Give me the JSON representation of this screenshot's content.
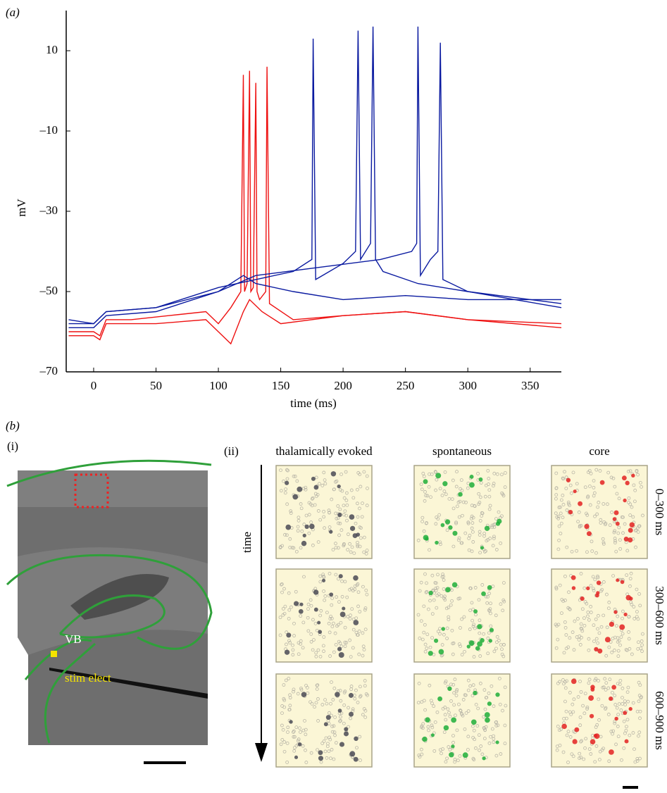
{
  "chart_data": {
    "type": "line",
    "label": "(a)",
    "xlabel": "time (ms)",
    "ylabel": "mV",
    "xlim": [
      -22,
      375
    ],
    "ylim": [
      -70,
      20
    ],
    "xticks": [
      0,
      50,
      100,
      150,
      200,
      250,
      300,
      350
    ],
    "yticks": [
      {
        "value": -70,
        "label": "–70"
      },
      {
        "value": -50,
        "label": "–50"
      },
      {
        "value": -30,
        "label": "–30"
      },
      {
        "value": -10,
        "label": "–10"
      },
      10
    ],
    "series": [
      {
        "color": "#ee1111",
        "x": [
          -20,
          0,
          5,
          10,
          50,
          90,
          100,
          110,
          120,
          125,
          135,
          150,
          200,
          250,
          300,
          375
        ],
        "values": [
          -61,
          -61,
          -62,
          -58,
          -58,
          -57,
          -60,
          -63,
          -55,
          -52,
          -55,
          -58,
          -56,
          -55,
          -57,
          -59
        ]
      },
      {
        "color": "#ee1111",
        "x": [
          -20,
          0,
          5,
          10,
          30,
          60,
          90,
          100,
          110,
          118,
          120,
          121,
          123,
          125,
          126,
          128,
          130,
          131,
          133,
          138,
          139,
          141,
          160,
          200,
          250,
          300,
          375
        ],
        "values": [
          -60,
          -60,
          -61,
          -57,
          -57,
          -56,
          -55,
          -58,
          -54,
          -50,
          4,
          -50,
          -48,
          5,
          -50,
          -49,
          2,
          -50,
          -52,
          -50,
          6,
          -53,
          -57,
          -56,
          -55,
          -57,
          -58
        ]
      },
      {
        "color": "#0a1aa0",
        "x": [
          -20,
          0,
          10,
          50,
          100,
          120,
          130,
          160,
          200,
          250,
          300,
          375
        ],
        "values": [
          -57,
          -58,
          -55,
          -54,
          -50,
          -46,
          -48,
          -50,
          -52,
          -51,
          -52,
          -52
        ]
      },
      {
        "color": "#0a1aa0",
        "x": [
          -20,
          0,
          10,
          50,
          100,
          130,
          160,
          175,
          176,
          178,
          200,
          210,
          212,
          214,
          222,
          224,
          226,
          232,
          260,
          300,
          375
        ],
        "values": [
          -58,
          -58,
          -55,
          -54,
          -49,
          -47,
          -45,
          -42,
          13,
          -47,
          -43,
          -40,
          15,
          -42,
          -38,
          16,
          -42,
          -45,
          -48,
          -50,
          -53
        ]
      },
      {
        "color": "#0a1aa0",
        "x": [
          -20,
          0,
          10,
          50,
          100,
          130,
          180,
          230,
          255,
          259,
          260,
          262,
          270,
          276,
          278,
          280,
          300,
          375
        ],
        "values": [
          -59,
          -59,
          -56,
          -55,
          -50,
          -46,
          -44,
          -42,
          -40,
          -38,
          16,
          -46,
          -42,
          -40,
          12,
          -47,
          -50,
          -54
        ]
      }
    ]
  },
  "panel_b": {
    "label": "(b)",
    "sub_i": "(i)",
    "sub_ii": "(ii)",
    "columns": [
      "thalamically evoked",
      "spontaneous",
      "core"
    ],
    "rows": [
      "0–300 ms",
      "300–600 ms",
      "600–900 ms"
    ],
    "time_label": "time",
    "vb": "VB",
    "stim": "stim elect"
  }
}
